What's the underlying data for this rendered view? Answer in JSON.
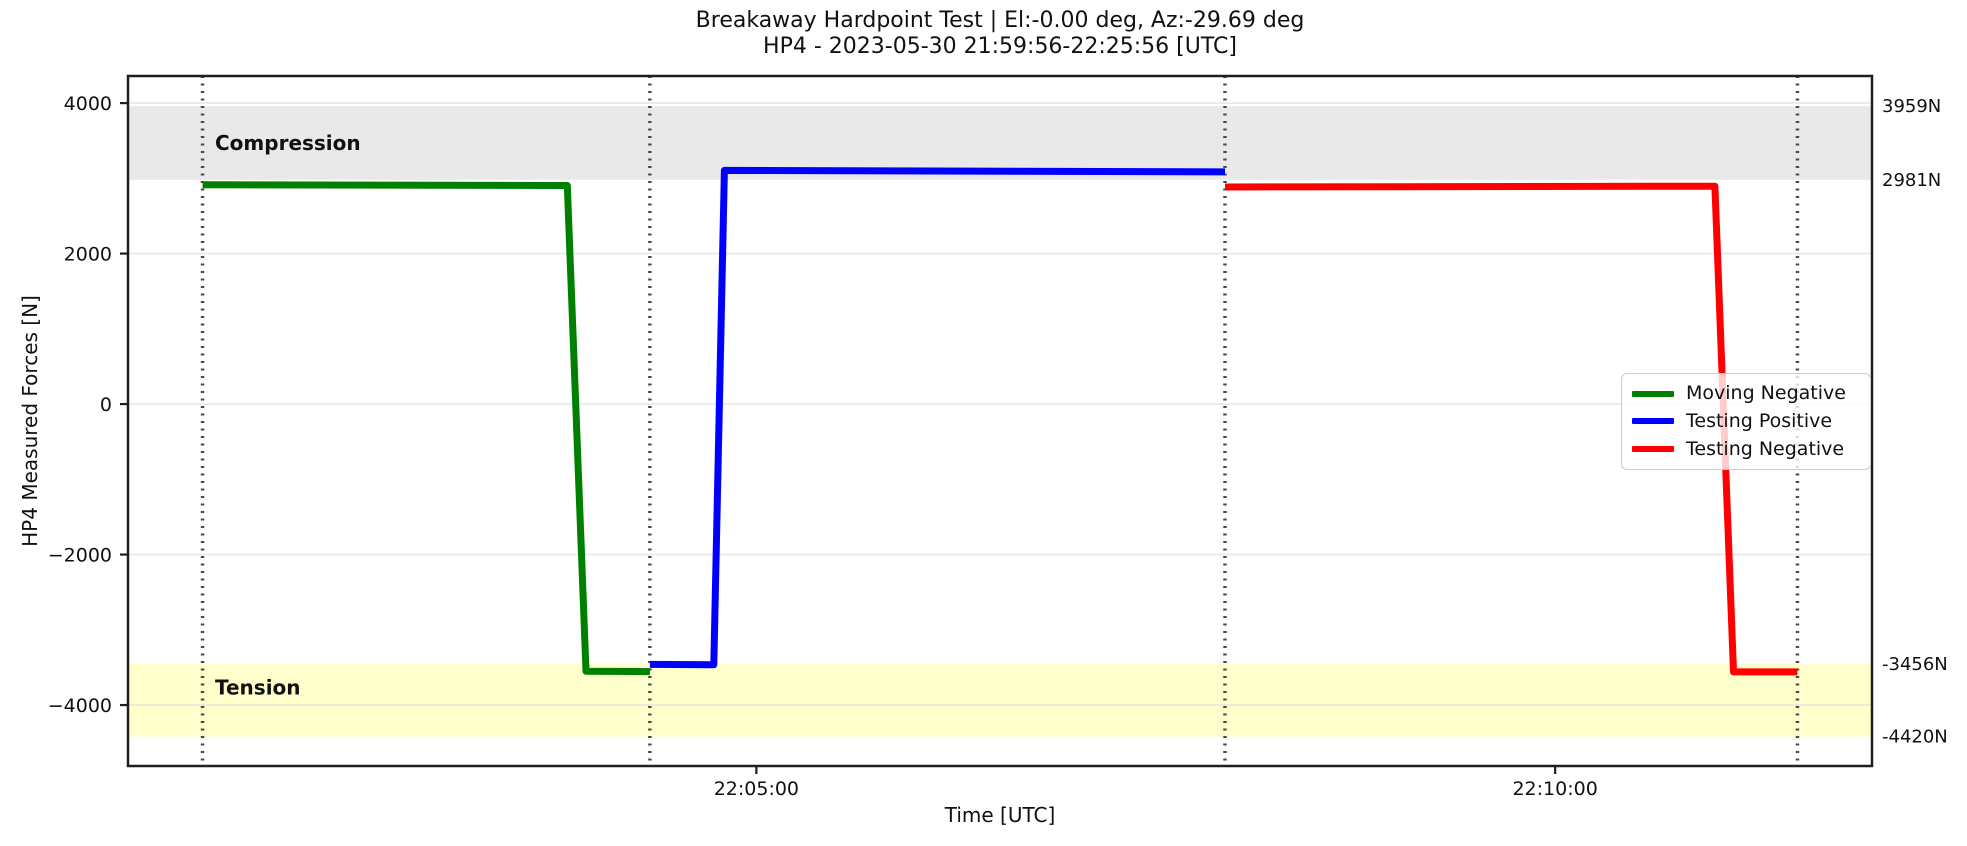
{
  "title": {
    "line1": "Breakaway Hardpoint Test | El:-0.00 deg, Az:-29.69 deg",
    "line2": "HP4 - 2023-05-30 21:59:56-22:25:56 [UTC]"
  },
  "axes": {
    "xlabel": "Time [UTC]",
    "ylabel": "HP4 Measured Forces [N]"
  },
  "chart_data": {
    "type": "line",
    "title": "Breakaway Hardpoint Test | El:-0.00 deg, Az:-29.69 deg — HP4 - 2023-05-30 21:59:56-22:25:56 [UTC]",
    "xlabel": "Time [UTC]",
    "ylabel": "HP4 Measured Forces [N]",
    "xlim": [
      "22:01:04",
      "22:11:59"
    ],
    "ylim": [
      -4810,
      4360
    ],
    "grid": true,
    "legend_position": "center right",
    "yticks": {
      "values": [
        4000,
        2000,
        0,
        -2000,
        -4000
      ],
      "labels": [
        "4000",
        "2000",
        "0",
        "−2000",
        "−4000"
      ]
    },
    "xticks": {
      "values": [
        "22:05:00",
        "22:10:00"
      ],
      "labels": [
        "22:05:00",
        "22:10:00"
      ]
    },
    "series": [
      {
        "name": "Moving Negative",
        "color": "#008000",
        "points": [
          [
            "22:01:32",
            2915
          ],
          [
            "22:03:49",
            2905
          ],
          [
            "22:03:56",
            -3550
          ],
          [
            "22:04:20",
            -3555
          ]
        ]
      },
      {
        "name": "Testing Positive",
        "color": "#0000ff",
        "points": [
          [
            "22:04:20",
            -3460
          ],
          [
            "22:04:44",
            -3465
          ],
          [
            "22:04:48",
            3105
          ],
          [
            "22:07:56",
            3085
          ]
        ]
      },
      {
        "name": "Testing Negative",
        "color": "#ff0000",
        "points": [
          [
            "22:07:56",
            2885
          ],
          [
            "22:11:00",
            2895
          ],
          [
            "22:11:07",
            -3560
          ],
          [
            "22:11:31",
            -3560
          ]
        ]
      }
    ],
    "event_lines": {
      "times": [
        "22:01:32",
        "22:04:20",
        "22:07:56",
        "22:11:31"
      ],
      "style": "dotted",
      "color": "#4a4a4a"
    },
    "bands": [
      {
        "label": "Compression",
        "from": 2981,
        "to": 3959,
        "label_y": 3470,
        "color": "#e9e9e9"
      },
      {
        "label": "Tension",
        "from": -4420,
        "to": -3456,
        "label_y": -3770,
        "color": "#ffffcc"
      }
    ],
    "annotations": [
      {
        "text": "3959N",
        "value": 3959
      },
      {
        "text": "2981N",
        "value": 2981
      },
      {
        "text": "-3456N",
        "value": -3456
      },
      {
        "text": "-4420N",
        "value": -4420
      }
    ],
    "colors": {
      "spine": "#1f1f1f",
      "grid": "#e3e3e3",
      "tick_text": "#111111"
    }
  }
}
